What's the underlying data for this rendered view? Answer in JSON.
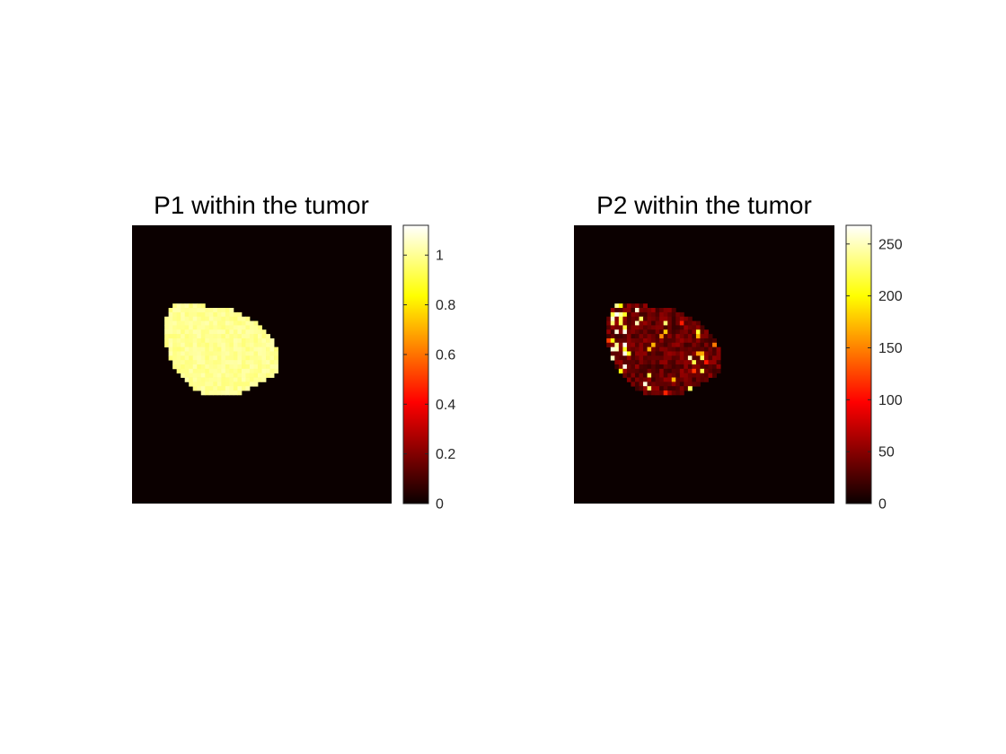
{
  "chart_data": [
    {
      "type": "heatmap",
      "title": "P1 within the tumor",
      "colormap": "hot",
      "clim": [
        0,
        1.12
      ],
      "colorbar": {
        "ticks": [
          0,
          0.2,
          0.4,
          0.6,
          0.8,
          1
        ],
        "tick_labels": [
          "0",
          "0.2",
          "0.4",
          "0.6",
          "0.8",
          "1"
        ]
      },
      "background_value": 0,
      "region_value_mean": 1.0,
      "region_value_range": [
        0.97,
        1.03
      ],
      "grid": false
    },
    {
      "type": "heatmap",
      "title": "P2 within the tumor",
      "colormap": "hot",
      "clim": [
        0,
        268
      ],
      "colorbar": {
        "ticks": [
          0,
          50,
          100,
          150,
          200,
          250
        ],
        "tick_labels": [
          "0",
          "50",
          "100",
          "150",
          "200",
          "250"
        ]
      },
      "background_value": 0,
      "region_value_typical": 40,
      "region_value_range": [
        10,
        268
      ],
      "grid": false
    }
  ],
  "colors": {
    "background": "#ffffff",
    "axes_edge": "#262626",
    "outside_region": "#0b0000"
  }
}
